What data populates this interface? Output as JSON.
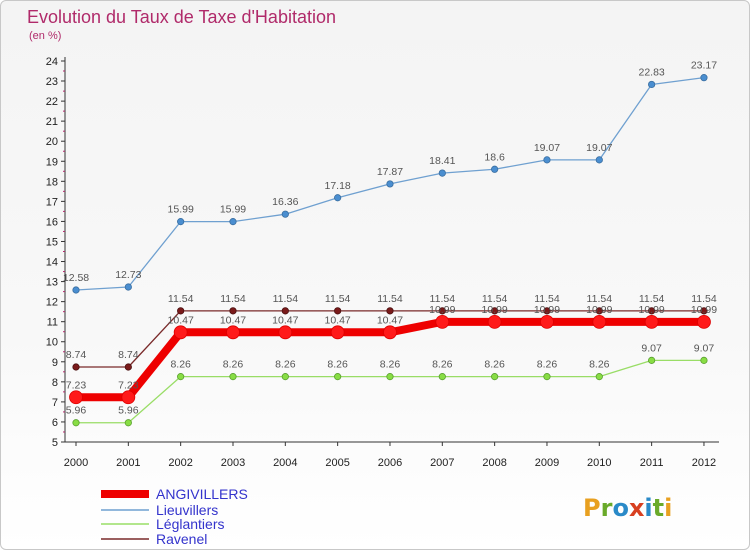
{
  "header": {
    "title": "Evolution du Taux de Taxe d'Habitation",
    "subtitle": "(en %)"
  },
  "logo": {
    "text": "Proxiti",
    "colors": [
      "#e8a020",
      "#6aaa2a",
      "#2a8ac8",
      "#d84020",
      "#2a8ac8",
      "#6aaa2a",
      "#e8a020"
    ]
  },
  "chart_data": {
    "type": "line",
    "title": "Evolution du Taux de Taxe d'Habitation",
    "ylabel": "(en %)",
    "xlabel": "",
    "x": [
      "2000",
      "2001",
      "2002",
      "2003",
      "2004",
      "2005",
      "2006",
      "2007",
      "2008",
      "2009",
      "2010",
      "2011",
      "2012"
    ],
    "ylim": [
      5,
      24
    ],
    "yticks": [
      5,
      6,
      7,
      8,
      9,
      10,
      11,
      12,
      13,
      14,
      15,
      16,
      17,
      18,
      19,
      20,
      21,
      22,
      23,
      24
    ],
    "grid": false,
    "legend_position": "bottom-left",
    "series": [
      {
        "name": "ANGIVILLERS",
        "color": "#ee0000",
        "values": [
          7.23,
          7.23,
          10.47,
          10.47,
          10.47,
          10.47,
          10.47,
          10.99,
          10.99,
          10.99,
          10.99,
          10.99,
          10.99
        ],
        "labels": [
          "7.23",
          "7.23",
          "10.47",
          "10.47",
          "10.47",
          "10.47",
          "10.47",
          "10.99",
          "10.99",
          "10.99",
          "10.99",
          "10.99",
          "10.99"
        ]
      },
      {
        "name": "Lieuvillers",
        "color": "#6fa0d0",
        "values": [
          12.58,
          12.73,
          15.99,
          15.99,
          16.36,
          17.18,
          17.87,
          18.41,
          18.6,
          19.07,
          19.07,
          22.83,
          23.17
        ],
        "labels": [
          "12.58",
          "12.73",
          "15.99",
          "15.99",
          "16.36",
          "17.18",
          "17.87",
          "18.41",
          "18.6",
          "19.07",
          "19.07",
          "22.83",
          "23.17"
        ]
      },
      {
        "name": "Léglantiers",
        "color": "#99dd66",
        "values": [
          5.96,
          5.96,
          8.26,
          8.26,
          8.26,
          8.26,
          8.26,
          8.26,
          8.26,
          8.26,
          8.26,
          9.07,
          9.07
        ],
        "labels": [
          "5.96",
          "5.96",
          "8.26",
          "8.26",
          "8.26",
          "8.26",
          "8.26",
          "8.26",
          "8.26",
          "8.26",
          "8.26",
          "9.07",
          "9.07"
        ]
      },
      {
        "name": "Ravenel",
        "color": "#7a2a2a",
        "values": [
          8.74,
          8.74,
          11.54,
          11.54,
          11.54,
          11.54,
          11.54,
          11.54,
          11.54,
          11.54,
          11.54,
          11.54,
          11.54
        ],
        "labels": [
          "8.74",
          "8.74",
          "11.54",
          "11.54",
          "11.54",
          "11.54",
          "11.54",
          "11.54",
          "11.54",
          "11.54",
          "11.54",
          "11.54",
          "11.54"
        ]
      }
    ]
  }
}
